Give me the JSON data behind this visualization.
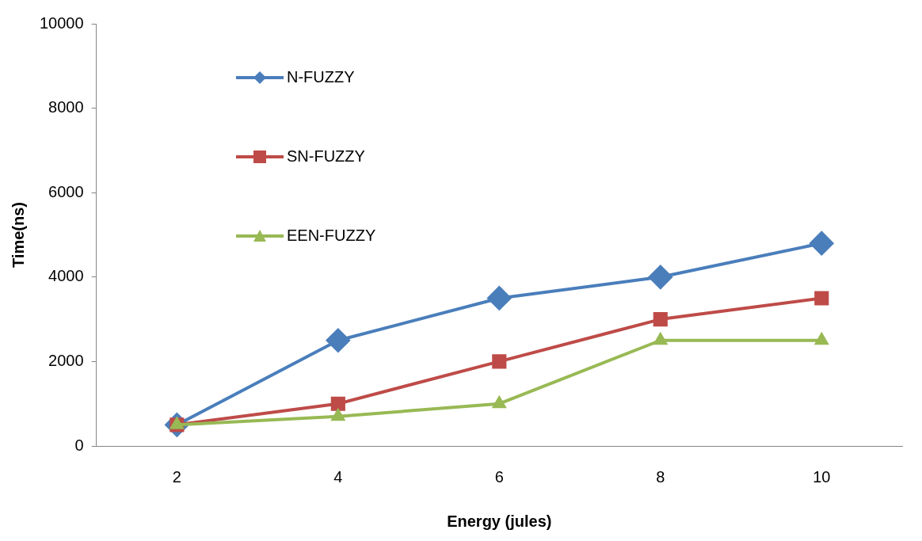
{
  "chart_data": {
    "type": "line",
    "xlabel": "Energy (jules)",
    "ylabel": "Time(ns)",
    "categories": [
      "2",
      "4",
      "6",
      "8",
      "10"
    ],
    "series": [
      {
        "name": "N-FUZZY",
        "color": "#4a7ebb",
        "marker": "diamond",
        "values": [
          500,
          2500,
          3500,
          4000,
          4800
        ]
      },
      {
        "name": "SN-FUZZY",
        "color": "#be4b48",
        "marker": "square",
        "values": [
          500,
          1000,
          2000,
          3000,
          3500
        ]
      },
      {
        "name": "EEN-FUZZY",
        "color": "#98b954",
        "marker": "triangle",
        "values": [
          500,
          700,
          1000,
          2500,
          2500
        ]
      }
    ],
    "ylim": [
      0,
      10000
    ],
    "yticks": [
      0,
      2000,
      4000,
      6000,
      8000,
      10000
    ],
    "grid": false,
    "legend": "top left"
  }
}
